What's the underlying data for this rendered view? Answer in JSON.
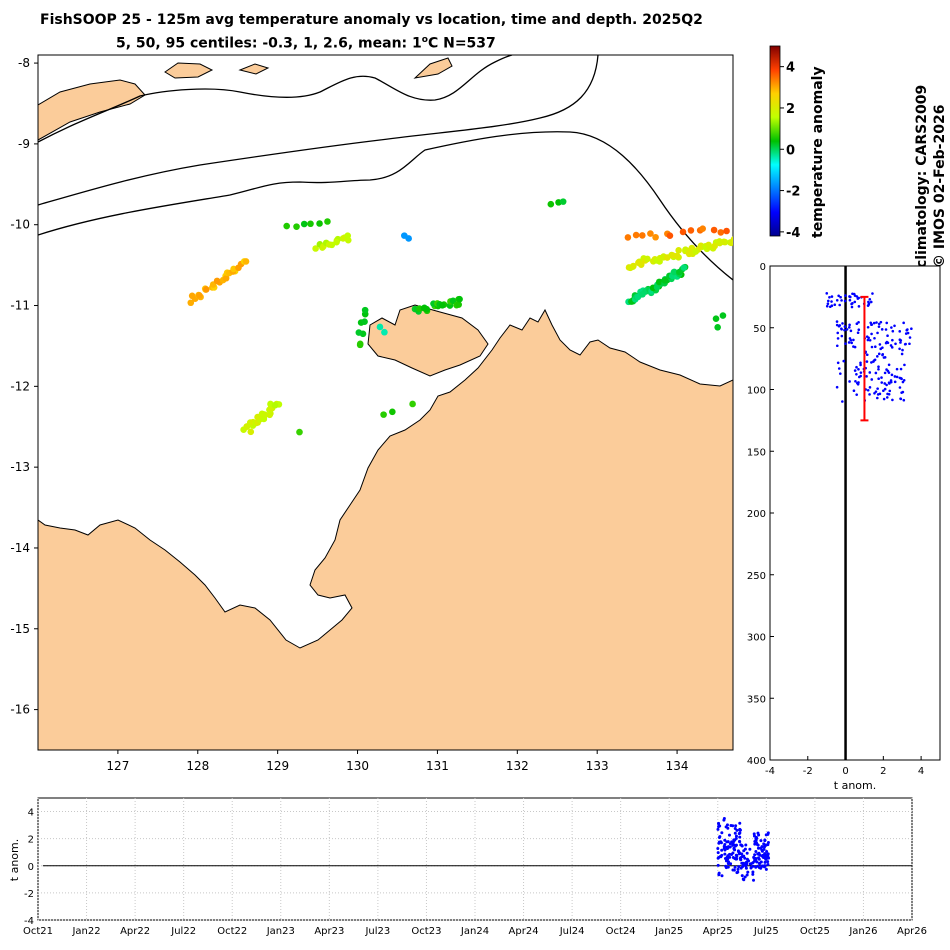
{
  "title": {
    "main": "FishSOOP 25 - 125m avg temperature anomaly vs location, time and depth. 2025Q2",
    "sub_prefix": "5, 50, 95 centiles: -0.3, 1, 2.6, mean: 1",
    "sub_degree": "o",
    "sub_suffix": "C N=537"
  },
  "side_text": {
    "climatology": "climatology: CARS2009",
    "copyright": "© IMOS 02-Feb-2026"
  },
  "colors": {
    "land": "#fbcc9a",
    "scatter": "#0000ff",
    "errorbar": "#ff0000",
    "grid": "#c8c8c8"
  },
  "chart_data": [
    {
      "type": "scatter",
      "name": "map",
      "xlabel": "",
      "ylabel": "",
      "xlim": [
        126,
        134.7
      ],
      "ylim": [
        -16.5,
        -7.9
      ],
      "x_ticks": [
        127,
        128,
        129,
        130,
        131,
        132,
        133,
        134
      ],
      "y_ticks": [
        -8,
        -9,
        -10,
        -11,
        -12,
        -13,
        -14,
        -15,
        -16
      ],
      "clusters": [
        {
          "name": "west-diagonal",
          "lon_start": 127.9,
          "lat_start": -10.95,
          "lon_end": 128.6,
          "lat_end": -10.45,
          "anomaly": 2.9,
          "n": 26
        },
        {
          "name": "north-129-5",
          "lon_start": 129.1,
          "lat_start": -10.0,
          "lon_end": 129.6,
          "lat_end": -10.0,
          "anomaly": 0.6,
          "n": 6
        },
        {
          "name": "mid-129-7",
          "lon_start": 129.5,
          "lat_start": -10.3,
          "lon_end": 129.9,
          "lat_end": -10.15,
          "anomaly": 1.6,
          "n": 14
        },
        {
          "name": "point-130-7",
          "lon_start": 130.6,
          "lat_start": -10.15,
          "lon_end": 130.65,
          "lat_end": -10.15,
          "anomaly": -1.6,
          "n": 2
        },
        {
          "name": "north-132-5",
          "lon_start": 132.45,
          "lat_start": -9.75,
          "lon_end": 132.55,
          "lat_end": -9.7,
          "anomaly": 0.2,
          "n": 3
        },
        {
          "name": "east-yellow",
          "lon_start": 133.4,
          "lat_start": -10.5,
          "lon_end": 134.7,
          "lat_end": -10.2,
          "anomaly": 1.9,
          "n": 48
        },
        {
          "name": "east-orange",
          "lon_start": 133.35,
          "lat_start": -10.15,
          "lon_end": 134.65,
          "lat_end": -10.05,
          "anomaly": 3.4,
          "n": 14
        },
        {
          "name": "east-green",
          "lon_start": 133.4,
          "lat_start": -10.95,
          "lon_end": 134.1,
          "lat_end": -10.55,
          "anomaly": 0.1,
          "n": 45
        },
        {
          "name": "east-small",
          "lon_start": 134.5,
          "lat_start": -11.25,
          "lon_end": 134.55,
          "lat_end": -11.15,
          "anomaly": 0.3,
          "n": 3
        },
        {
          "name": "melville-north",
          "lon_start": 130.7,
          "lat_start": -11.05,
          "lon_end": 131.3,
          "lat_end": -10.95,
          "anomaly": 0.5,
          "n": 22
        },
        {
          "name": "bathurst-west",
          "lon_start": 130.0,
          "lat_start": -11.5,
          "lon_end": 130.1,
          "lat_end": -11.05,
          "anomaly": 0.4,
          "n": 8
        },
        {
          "name": "point-130-35",
          "lon_start": 130.3,
          "lat_start": -11.3,
          "lon_end": 130.35,
          "lat_end": -11.3,
          "anomaly": -0.5,
          "n": 2
        },
        {
          "name": "tiwi-south",
          "lon_start": 130.3,
          "lat_start": -12.35,
          "lon_end": 130.65,
          "lat_end": -12.25,
          "anomaly": 0.5,
          "n": 3
        },
        {
          "name": "south-west",
          "lon_start": 128.6,
          "lat_start": -12.55,
          "lon_end": 129.0,
          "lat_end": -12.2,
          "anomaly": 1.7,
          "n": 28
        },
        {
          "name": "point-129-3",
          "lon_start": 129.25,
          "lat_start": -12.55,
          "lon_end": 129.3,
          "lat_end": -12.55,
          "anomaly": 0.6,
          "n": 1
        }
      ]
    },
    {
      "type": "heatmap",
      "name": "colorbar",
      "ylabel": "temperature anomaly",
      "ylim": [
        -4.2,
        5
      ],
      "ticks": [
        4,
        2,
        0,
        -2,
        -4
      ],
      "colormap": "jet"
    },
    {
      "type": "scatter",
      "name": "depth-profile",
      "xlabel": "t anom.",
      "ylabel": "",
      "xlim": [
        -4,
        5
      ],
      "ylim": [
        0,
        400
      ],
      "x_ticks": [
        -4,
        -2,
        0,
        2,
        4
      ],
      "y_ticks": [
        0,
        50,
        100,
        150,
        200,
        250,
        300,
        350,
        400
      ],
      "reversed_y": true,
      "zero_line": 0,
      "errorbar": {
        "x": 1,
        "y_low": 25,
        "y_high": 125
      },
      "clusters": [
        {
          "name": "top-band",
          "x_min": -1.0,
          "x_max": 1.5,
          "y_min": 22,
          "y_max": 34,
          "n": 40
        },
        {
          "name": "mid-band",
          "x_min": -0.5,
          "x_max": 3.5,
          "y_min": 45,
          "y_max": 68,
          "n": 80
        },
        {
          "name": "deep-band",
          "x_min": 0.5,
          "x_max": 3.2,
          "y_min": 68,
          "y_max": 110,
          "n": 90
        },
        {
          "name": "outliers",
          "x_min": -1.0,
          "x_max": 0.5,
          "y_min": 75,
          "y_max": 115,
          "n": 8
        }
      ]
    },
    {
      "type": "scatter",
      "name": "time-series",
      "xlabel": "",
      "ylabel": "t anom.",
      "ylim": [
        -4,
        5
      ],
      "y_ticks": [
        4,
        2,
        0,
        -2,
        -4
      ],
      "x_tick_labels": [
        "Oct21",
        "Jan22",
        "Apr22",
        "Jul22",
        "Oct22",
        "Jan23",
        "Apr23",
        "Jul23",
        "Oct23",
        "Jan24",
        "Apr24",
        "Jul24",
        "Oct24",
        "Jan25",
        "Apr25",
        "Jul25",
        "Oct25",
        "Jan26",
        "Apr26"
      ],
      "zero_line": 0,
      "clusters": [
        {
          "name": "apr25",
          "x_start": 14.0,
          "x_end": 14.5,
          "y_min": -0.5,
          "y_max": 3.2,
          "n": 120
        },
        {
          "name": "may25",
          "x_start": 14.5,
          "x_end": 14.75,
          "y_min": -1.2,
          "y_max": 1.5,
          "n": 40
        },
        {
          "name": "jun25",
          "x_start": 14.75,
          "x_end": 15.05,
          "y_min": -0.5,
          "y_max": 2.5,
          "n": 80
        }
      ]
    }
  ]
}
